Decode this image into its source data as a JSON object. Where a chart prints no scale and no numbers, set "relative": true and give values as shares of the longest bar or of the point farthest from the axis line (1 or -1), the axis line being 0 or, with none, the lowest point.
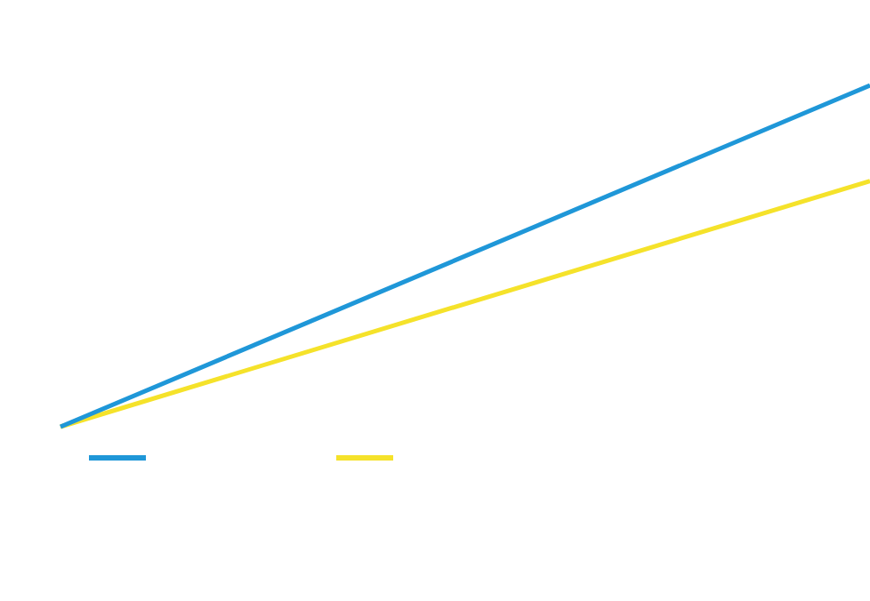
{
  "chart_data": {
    "type": "line",
    "relative": true,
    "categories": [
      null,
      null
    ],
    "series": [
      {
        "color": "#1f97d8",
        "values": [
          0,
          1
        ]
      },
      {
        "color": "#f5e22a",
        "values": [
          0,
          0.72
        ]
      }
    ],
    "legend": false,
    "marker": "none",
    "line_style": "solid"
  }
}
